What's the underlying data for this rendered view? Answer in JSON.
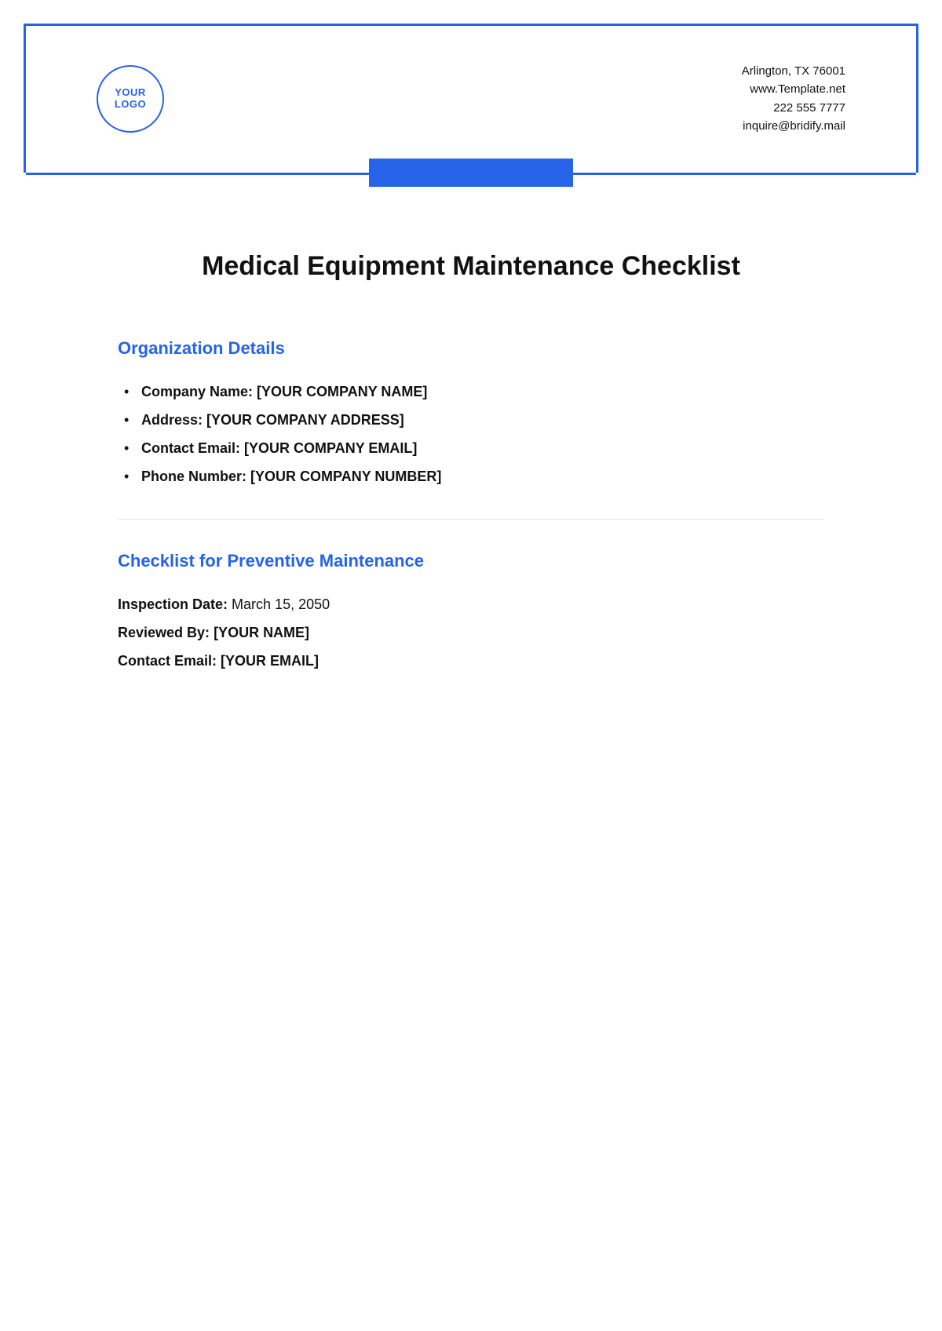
{
  "colors": {
    "accent": "#2663e8",
    "text": "#111111",
    "divider": "#e5e5e5",
    "background": "#ffffff"
  },
  "header": {
    "logo_line1": "YOUR",
    "logo_line2": "LOGO",
    "contact": {
      "address": "Arlington, TX 76001",
      "website": "www.Template.net",
      "phone": "222 555 7777",
      "email": "inquire@bridify.mail"
    }
  },
  "title": "Medical Equipment Maintenance Checklist",
  "org_section": {
    "heading": "Organization Details",
    "items": [
      {
        "label": "Company Name:",
        "value": "[YOUR COMPANY NAME]"
      },
      {
        "label": "Address:",
        "value": "[YOUR COMPANY ADDRESS]"
      },
      {
        "label": "Contact Email:",
        "value": "[YOUR COMPANY EMAIL]"
      },
      {
        "label": "Phone Number:",
        "value": "[YOUR COMPANY NUMBER]"
      }
    ]
  },
  "checklist_section": {
    "heading": "Checklist for Preventive Maintenance",
    "lines": [
      {
        "label": "Inspection Date:",
        "value": "March 15, 2050",
        "value_bold": false
      },
      {
        "label": "Reviewed By:",
        "value": "[YOUR NAME]",
        "value_bold": true
      },
      {
        "label": "Contact Email:",
        "value": "[YOUR EMAIL]",
        "value_bold": true
      }
    ]
  }
}
